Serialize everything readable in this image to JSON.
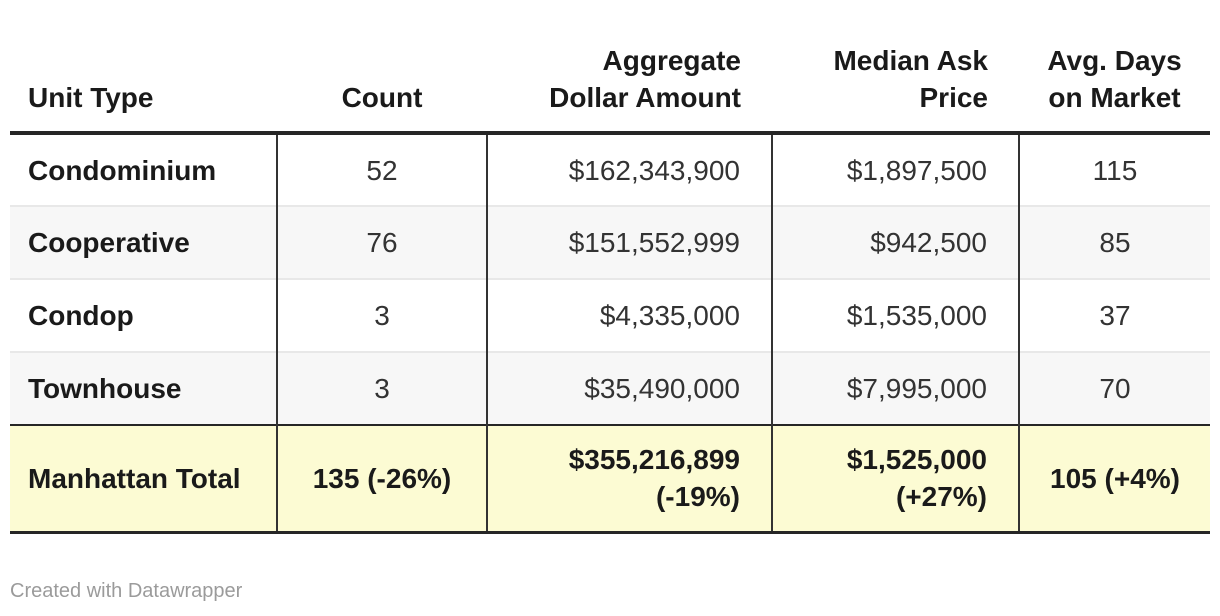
{
  "chart_data": {
    "type": "table",
    "columns": [
      {
        "label": [
          "Unit Type"
        ],
        "align": "left"
      },
      {
        "label": [
          "Count"
        ],
        "align": "center"
      },
      {
        "label": [
          "Aggregate",
          "Dollar Amount"
        ],
        "align": "right"
      },
      {
        "label": [
          "Median Ask",
          "Price"
        ],
        "align": "right"
      },
      {
        "label": [
          "Avg. Days",
          "on Market"
        ],
        "align": "center"
      }
    ],
    "rows": [
      {
        "total": false,
        "cells": [
          [
            "Condominium"
          ],
          [
            "52"
          ],
          [
            "$162,343,900"
          ],
          [
            "$1,897,500"
          ],
          [
            "115"
          ]
        ]
      },
      {
        "total": false,
        "cells": [
          [
            "Cooperative"
          ],
          [
            "76"
          ],
          [
            "$151,552,999"
          ],
          [
            "$942,500"
          ],
          [
            "85"
          ]
        ]
      },
      {
        "total": false,
        "cells": [
          [
            "Condop"
          ],
          [
            "3"
          ],
          [
            "$4,335,000"
          ],
          [
            "$1,535,000"
          ],
          [
            "37"
          ]
        ]
      },
      {
        "total": false,
        "cells": [
          [
            "Townhouse"
          ],
          [
            "3"
          ],
          [
            "$35,490,000"
          ],
          [
            "$7,995,000"
          ],
          [
            "70"
          ]
        ]
      },
      {
        "total": true,
        "cells": [
          [
            "Manhattan Total"
          ],
          [
            "135 (-26%)"
          ],
          [
            "$355,216,899",
            "(-19%)"
          ],
          [
            "$1,525,000",
            "(+27%)"
          ],
          [
            "105 (+4%)"
          ]
        ]
      }
    ]
  },
  "footer": {
    "credit": "Created with Datawrapper"
  },
  "colors": {
    "total_row_bg": "#fcfbd3",
    "alt_row_bg": "#f7f7f7",
    "divider": "#333333",
    "dark_border": "#262626",
    "row_separator": "#e8e8e8",
    "footer_text": "#9b9b9b",
    "bold_text": "#1a1a1a",
    "body_text": "#333333"
  }
}
